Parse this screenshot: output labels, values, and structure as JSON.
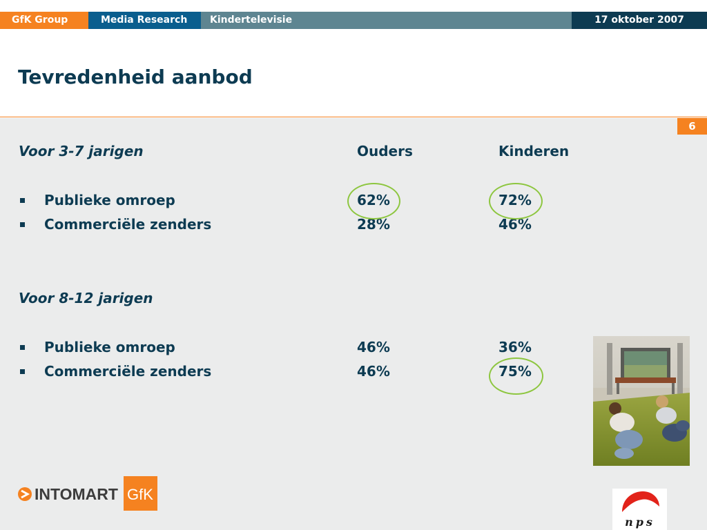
{
  "header": {
    "brand": "GfK Group",
    "section": "Media Research",
    "topic": "Kindertelevisie",
    "date": "17 oktober 2007"
  },
  "slide": {
    "title": "Tevredenheid aanbod",
    "page_number": "6"
  },
  "columns": {
    "parents": "Ouders",
    "children": "Kinderen"
  },
  "groups": [
    {
      "label": "Voor 3-7 jarigen",
      "rows": [
        {
          "label": "Publieke omroep",
          "parents": "62%",
          "children": "72%"
        },
        {
          "label": "Commerciële zenders",
          "parents": "28%",
          "children": "46%"
        }
      ]
    },
    {
      "label": "Voor 8-12 jarigen",
      "rows": [
        {
          "label": "Publieke omroep",
          "parents": "46%",
          "children": "36%"
        },
        {
          "label": "Commerciële zenders",
          "parents": "46%",
          "children": "75%"
        }
      ]
    }
  ],
  "highlights": [
    "62%",
    "72%",
    "75%"
  ],
  "logos": {
    "intomart_wordmark": "INTOMART",
    "gfk_wordmark": "GfK",
    "nps_wordmark": "nps"
  },
  "colors": {
    "orange": "#f58220",
    "navy": "#0d3b52",
    "blue": "#0a5e8e",
    "teal": "#5e8591",
    "highlight_green": "#8dc63f",
    "panel_gray": "#ebecec"
  },
  "icons": {
    "bullet": "square-bullet-icon",
    "intomart_arrow": "intomart-arrow-icon"
  }
}
